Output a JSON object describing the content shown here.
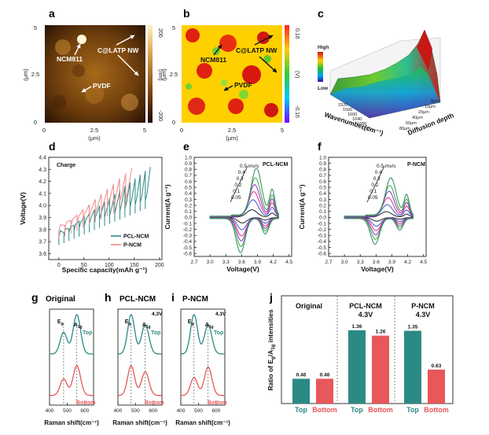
{
  "chart_data": [
    {
      "id": "a",
      "type": "heatmap",
      "panel_label": "a",
      "xlabel": "(μm)",
      "ylabel": "(μm)",
      "xticks": [
        "0",
        "2.5",
        "5"
      ],
      "yticks": [
        "0",
        "2.5",
        "5"
      ],
      "colorbar": {
        "ticks": [
          "200",
          "(nm)",
          "-200"
        ]
      },
      "annotations": [
        "NCM811",
        "C@LATP NW",
        "PVDF"
      ]
    },
    {
      "id": "b",
      "type": "heatmap",
      "panel_label": "b",
      "xlabel": "(μm)",
      "ylabel": "(μm)",
      "xticks": [
        "0",
        "2.5",
        "5"
      ],
      "yticks": [
        "0",
        "2.5",
        "5"
      ],
      "colorbar": {
        "ticks": [
          "0.16",
          "(V)",
          "-0.16"
        ]
      },
      "annotations": [
        "NCM811",
        "C@LATP NW",
        "PVDF"
      ]
    },
    {
      "id": "c",
      "type": "area",
      "panel_label": "c",
      "xlabel": "Wavenumber(cm⁻¹)",
      "ylabel": "Diffusion depth",
      "colorbar": {
        "ticks": [
          "High",
          "Low"
        ]
      },
      "xticks": [
        "1520",
        "1560",
        "1600",
        "1640",
        "1680",
        "1720"
      ],
      "yticks": [
        "0μm",
        "10μm",
        "20μm",
        "40μm",
        "60μm",
        "80μm"
      ]
    },
    {
      "id": "d",
      "type": "line",
      "panel_label": "d",
      "annotations": [
        "Charge"
      ],
      "xlabel": "Specific capacity(mAh g⁻¹)",
      "ylabel": "Voltage(V)",
      "xlim": [
        -20,
        205
      ],
      "ylim": [
        3.55,
        4.4
      ],
      "xticks": [
        0,
        50,
        100,
        150,
        200
      ],
      "yticks": [
        3.6,
        3.7,
        3.8,
        3.9,
        4.0,
        4.1,
        4.2,
        4.3,
        4.4
      ],
      "legend_position": "bottom-right",
      "series": [
        {
          "name": "PCL-NCM",
          "color": "#2b8a84",
          "steps": 18,
          "final_capacity": 182,
          "v_start": 3.74,
          "v_end": 4.32
        },
        {
          "name": "P-NCM",
          "color": "#f0888a",
          "steps": 12,
          "final_capacity": 145,
          "v_start": 3.79,
          "v_end": 4.31
        }
      ]
    },
    {
      "id": "e",
      "type": "line",
      "panel_label": "e",
      "title": "PCL-NCM",
      "xlabel": "Voltage(V)",
      "ylabel": "Current(A g⁻¹)",
      "xlim": [
        2.7,
        4.55
      ],
      "ylim": [
        -0.65,
        1.0
      ],
      "xticks": [
        2.7,
        3.0,
        3.3,
        3.6,
        3.9,
        4.2,
        4.5
      ],
      "yticks": [
        -0.6,
        -0.5,
        -0.4,
        -0.3,
        -0.2,
        -0.1,
        0.0,
        0.1,
        0.2,
        0.3,
        0.4,
        0.5,
        0.6,
        0.7,
        0.8,
        0.9,
        1.0
      ],
      "scan_rates": [
        "0.5 mv/s",
        "0.4",
        "0.3",
        "0.2",
        "0.1",
        "0.05"
      ],
      "series_colors": [
        "#2e8b57",
        "#40a848",
        "#9932cc",
        "#d63384",
        "#3355cc",
        "#222222"
      ],
      "anodic_peaks_A": [
        0.78,
        0.63,
        0.52,
        0.41,
        0.28,
        0.12
      ],
      "cathodic_peaks_A": [
        -0.57,
        -0.47,
        -0.38,
        -0.3,
        -0.2,
        -0.09
      ]
    },
    {
      "id": "f",
      "type": "line",
      "panel_label": "f",
      "title": "P-NCM",
      "xlabel": "Voltage(V)",
      "ylabel": "Current(A g⁻¹)",
      "xlim": [
        2.7,
        4.55
      ],
      "ylim": [
        -0.65,
        1.0
      ],
      "xticks": [
        2.7,
        3.0,
        3.3,
        3.6,
        3.9,
        4.2,
        4.5
      ],
      "yticks": [
        -0.6,
        -0.5,
        -0.4,
        -0.3,
        -0.2,
        -0.1,
        0.0,
        0.1,
        0.2,
        0.3,
        0.4,
        0.5,
        0.6,
        0.7,
        0.8,
        0.9,
        1.0
      ],
      "scan_rates": [
        "0.5 mv/s",
        "0.4",
        "0.3",
        "0.2",
        "0.1",
        "0.05"
      ],
      "series_colors": [
        "#2e8b57",
        "#40a848",
        "#9932cc",
        "#d63384",
        "#3355cc",
        "#222222"
      ],
      "anodic_peaks_A": [
        0.62,
        0.5,
        0.41,
        0.31,
        0.2,
        0.09
      ],
      "cathodic_peaks_A": [
        -0.43,
        -0.35,
        -0.28,
        -0.21,
        -0.14,
        -0.06
      ]
    },
    {
      "id": "g",
      "type": "line",
      "panel_label": "g",
      "title": "Original",
      "xlabel": "Raman shift(cm⁻¹)",
      "xlim": [
        400,
        650
      ],
      "xticks": [
        400,
        500,
        600
      ],
      "peak_labels": [
        "Eg",
        "A1g"
      ],
      "peaks_x": [
        480,
        555
      ],
      "series": [
        {
          "name": "Top",
          "color": "#2b8a84",
          "eg_height": 0.55,
          "a1g_height": 1.0
        },
        {
          "name": "Bottom",
          "color": "#e8575a",
          "eg_height": 0.55,
          "a1g_height": 1.0
        }
      ]
    },
    {
      "id": "h",
      "type": "line",
      "panel_label": "h",
      "title": "PCL-NCM",
      "subtitle": "4.3V",
      "xlabel": "Raman shift(cm⁻¹)",
      "xlim": [
        400,
        650
      ],
      "xticks": [
        400,
        500,
        600
      ],
      "peak_labels": [
        "Eg",
        "A1g"
      ],
      "peaks_x": [
        475,
        555
      ],
      "series": [
        {
          "name": "Top",
          "color": "#2b8a84",
          "eg_height": 1.0,
          "a1g_height": 0.74
        },
        {
          "name": "Bottom",
          "color": "#e8575a",
          "eg_height": 1.0,
          "a1g_height": 0.79
        }
      ]
    },
    {
      "id": "i",
      "type": "line",
      "panel_label": "i",
      "title": "P-NCM",
      "subtitle": "4.3V",
      "xlabel": "Raman shift(cm⁻¹)",
      "xlim": [
        400,
        650
      ],
      "xticks": [
        400,
        500,
        600
      ],
      "peak_labels": [
        "Eg",
        "A1g"
      ],
      "peaks_x": [
        475,
        555
      ],
      "series": [
        {
          "name": "Top",
          "color": "#2b8a84",
          "eg_height": 1.0,
          "a1g_height": 0.74
        },
        {
          "name": "Bottom",
          "color": "#e8575a",
          "eg_height": 0.6,
          "a1g_height": 0.95
        }
      ]
    },
    {
      "id": "j",
      "type": "bar",
      "panel_label": "j",
      "ylabel": "Ratio of Eg/A1g intensities",
      "ylim": [
        0,
        2.0
      ],
      "groups": [
        {
          "label": "Original",
          "categories": [
            "Top",
            "Bottom"
          ],
          "values": [
            0.46,
            0.46
          ],
          "value_labels": [
            "0.46",
            "0.46"
          ]
        },
        {
          "label": "PCL-NCM\n4.3V",
          "categories": [
            "Top",
            "Bottom"
          ],
          "values": [
            1.36,
            1.26
          ],
          "value_labels": [
            "1.36",
            "1.26"
          ]
        },
        {
          "label": "P-NCM\n4.3V",
          "categories": [
            "Top",
            "Bottom"
          ],
          "values": [
            1.35,
            0.63
          ],
          "value_labels": [
            "1.35",
            "0.63"
          ]
        }
      ],
      "colors": {
        "Top": "#2b8a84",
        "Bottom": "#e8575a"
      }
    }
  ]
}
